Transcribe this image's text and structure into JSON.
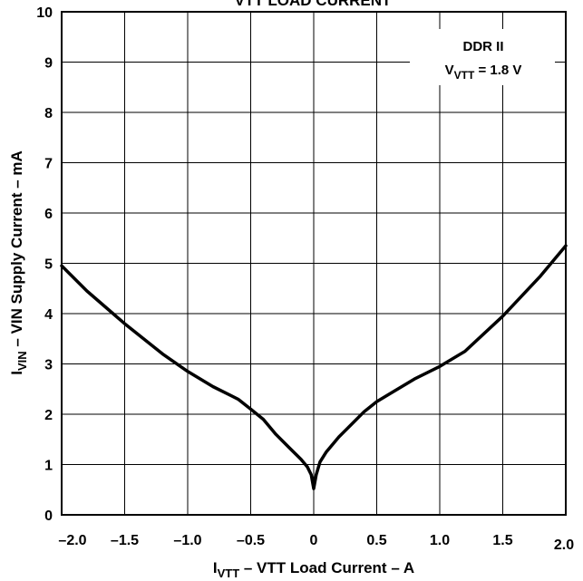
{
  "chart_data": {
    "type": "line",
    "title": "VTT LOAD CURRENT",
    "xlabel_main": "I",
    "xlabel_sub": "VTT",
    "xlabel_rest": " – VTT Load Current – A",
    "ylabel_main": "I",
    "ylabel_sub": "VIN",
    "ylabel_rest": " – VIN Supply Current – mA",
    "xlim": [
      -2.0,
      2.0
    ],
    "ylim": [
      0,
      10
    ],
    "grid": true,
    "x_ticks": [
      -2.0,
      -1.5,
      -1.0,
      -0.5,
      0,
      0.5,
      1.0,
      1.5,
      2.0
    ],
    "x_tick_labels": [
      "–2.0",
      "–1.5",
      "–1.0",
      "–0.5",
      "0",
      "0.5",
      "1.0",
      "1.5",
      "2.0"
    ],
    "y_ticks": [
      0,
      1,
      2,
      3,
      4,
      5,
      6,
      7,
      8,
      9,
      10
    ],
    "y_tick_labels": [
      "0",
      "1",
      "2",
      "3",
      "4",
      "5",
      "6",
      "7",
      "8",
      "9",
      "10"
    ],
    "annotation": {
      "line1": "DDR II",
      "line2_main": "V",
      "line2_sub": "VTT",
      "line2_rest": " = 1.8 V"
    },
    "series": [
      {
        "x": [
          -2.0,
          -1.8,
          -1.5,
          -1.2,
          -1.0,
          -0.8,
          -0.6,
          -0.5,
          -0.4,
          -0.3,
          -0.2,
          -0.1,
          -0.05,
          -0.02,
          0,
          0.02,
          0.05,
          0.1,
          0.2,
          0.3,
          0.4,
          0.5,
          0.6,
          0.8,
          1.0,
          1.2,
          1.5,
          1.8,
          2.0
        ],
        "y": [
          4.95,
          4.45,
          3.8,
          3.2,
          2.85,
          2.55,
          2.3,
          2.1,
          1.9,
          1.6,
          1.35,
          1.1,
          0.95,
          0.8,
          0.52,
          0.8,
          1.05,
          1.25,
          1.55,
          1.8,
          2.05,
          2.25,
          2.4,
          2.7,
          2.95,
          3.25,
          3.95,
          4.75,
          5.35
        ]
      }
    ]
  }
}
